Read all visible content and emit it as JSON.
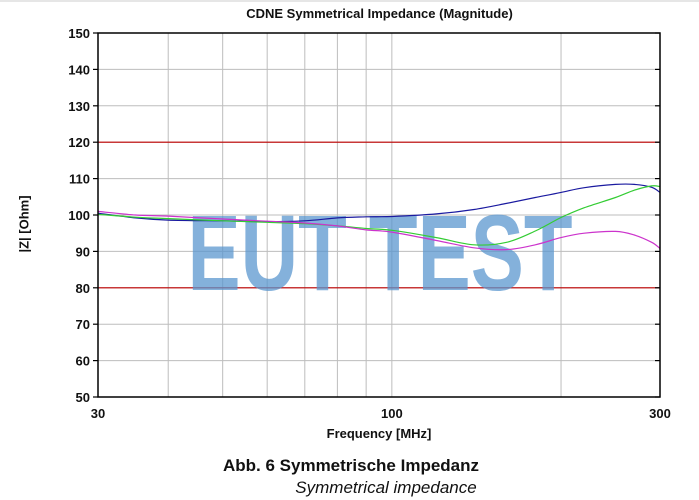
{
  "figure": {
    "caption_de": "Abb. 6 Symmetrische Impedanz",
    "caption_en": "Symmetrical impedance",
    "watermark": "EUT TEST"
  },
  "chart_data": {
    "type": "line",
    "title": "CDNE Symmetrical Impedance (Magnitude)",
    "xlabel": "Frequency [MHz]",
    "ylabel": "|Z| [Ohm]",
    "xscale": "log",
    "xlim": [
      30,
      300
    ],
    "ylim": [
      50,
      150
    ],
    "x_tick_labels": [
      "30",
      "100",
      "300"
    ],
    "y_tick_labels": [
      "50",
      "60",
      "70",
      "80",
      "90",
      "100",
      "110",
      "120",
      "130",
      "140",
      "150"
    ],
    "grid": true,
    "limit_lines": [
      {
        "name": "upper limit",
        "value": 120,
        "color": "#c00000"
      },
      {
        "name": "lower limit",
        "value": 80,
        "color": "#c00000"
      }
    ],
    "x": [
      30,
      35,
      40,
      50,
      60,
      70,
      80,
      90,
      100,
      120,
      140,
      160,
      180,
      200,
      220,
      250,
      270,
      290,
      300
    ],
    "series": [
      {
        "name": "blue",
        "color": "#1a1aa0",
        "values": [
          100.5,
          99.2,
          98.6,
          98.4,
          98.2,
          98.4,
          99.2,
          99.5,
          99.6,
          100.3,
          101.5,
          103.2,
          104.8,
          106.2,
          107.5,
          108.4,
          108.4,
          107.6,
          106.2
        ]
      },
      {
        "name": "green",
        "color": "#33cc33",
        "values": [
          100.2,
          99.4,
          99.0,
          98.4,
          98.0,
          97.6,
          97.0,
          96.3,
          95.8,
          93.8,
          91.8,
          92.5,
          95.6,
          99.3,
          102.0,
          104.8,
          106.8,
          108.0,
          107.8
        ]
      },
      {
        "name": "magenta",
        "color": "#cc33cc",
        "values": [
          101.0,
          100.0,
          99.7,
          98.9,
          98.3,
          97.8,
          97.0,
          95.9,
          95.3,
          93.0,
          91.0,
          90.5,
          91.8,
          93.8,
          95.0,
          95.5,
          94.5,
          92.5,
          90.8
        ]
      }
    ]
  }
}
